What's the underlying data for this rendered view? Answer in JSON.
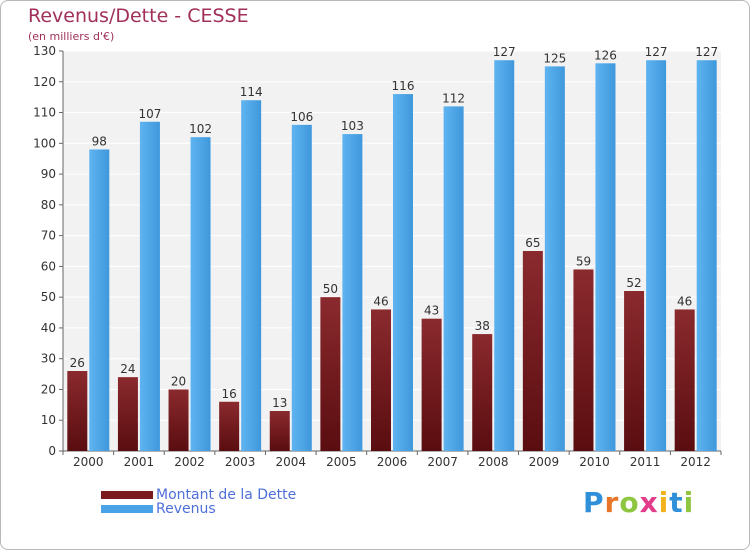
{
  "header": {
    "title": "Revenus/Dette - CESSE",
    "subtitle": "(en milliers d'€)"
  },
  "chart_data": {
    "type": "bar",
    "categories": [
      "2000",
      "2001",
      "2002",
      "2003",
      "2004",
      "2005",
      "2006",
      "2007",
      "2008",
      "2009",
      "2010",
      "2011",
      "2012"
    ],
    "series": [
      {
        "name": "Montant de la Dette",
        "color": "#7a1a1e",
        "values": [
          26,
          24,
          20,
          16,
          13,
          50,
          46,
          43,
          38,
          65,
          59,
          52,
          46
        ]
      },
      {
        "name": "Revenus",
        "color": "#4aa3e6",
        "values": [
          98,
          107,
          102,
          114,
          106,
          103,
          116,
          112,
          127,
          125,
          126,
          127,
          127
        ]
      }
    ],
    "yticks": [
      0,
      10,
      20,
      30,
      40,
      50,
      60,
      70,
      80,
      90,
      100,
      110,
      120,
      130
    ],
    "ylim": [
      0,
      130
    ],
    "grid": true,
    "legend_position": "bottom-left"
  },
  "logo": {
    "letters": [
      "P",
      "r",
      "o",
      "x",
      "i",
      "t",
      "i"
    ],
    "colors": [
      "#2f8fd8",
      "#e8752a",
      "#8fc63f",
      "#e23b8a",
      "#f2b21b",
      "#2f8fd8",
      "#8fc63f"
    ]
  }
}
